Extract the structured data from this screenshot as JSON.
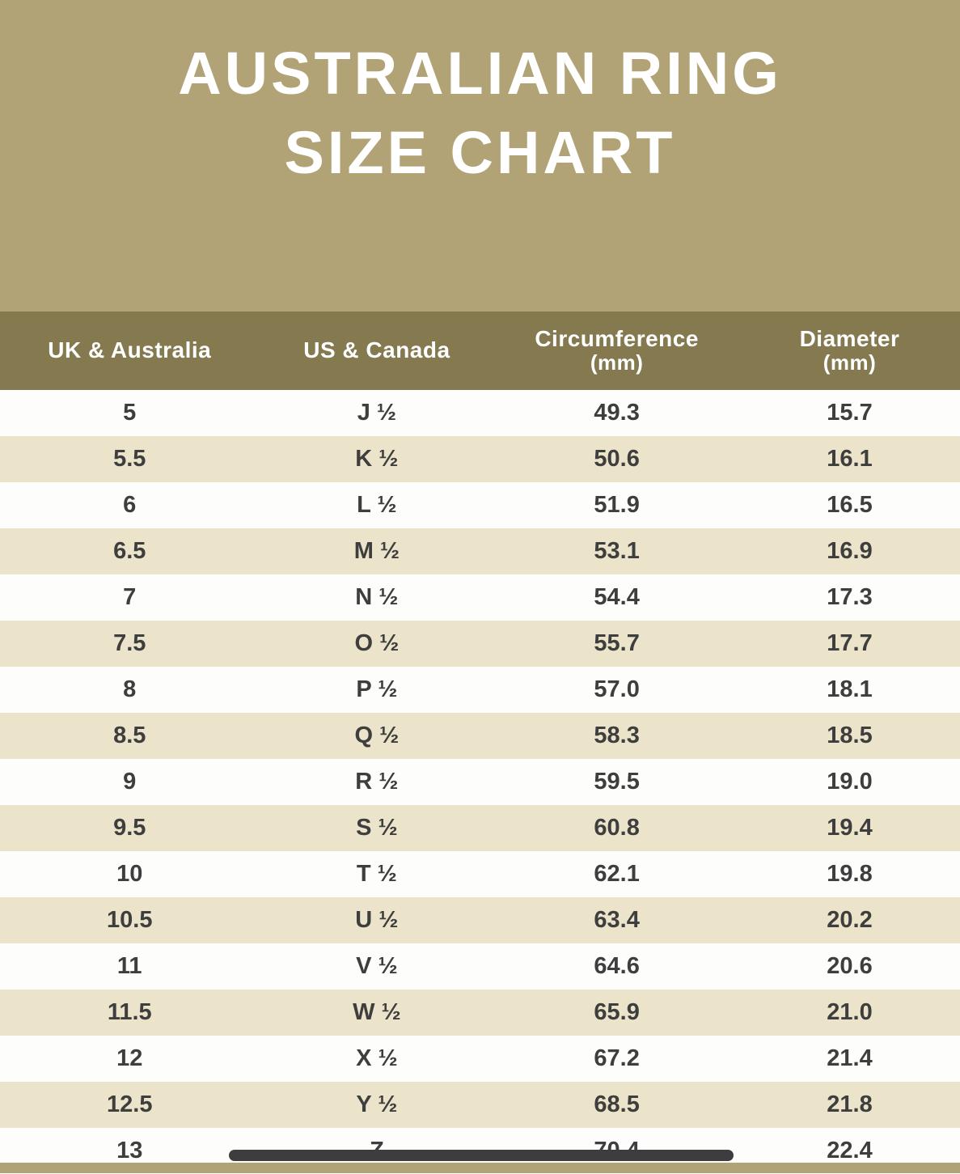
{
  "banner": {
    "title_line1": "AUSTRALIAN RING",
    "title_line2": "SIZE CHART"
  },
  "table": {
    "headers": [
      {
        "main": "UK & Australia",
        "sub": ""
      },
      {
        "main": "US & Canada",
        "sub": ""
      },
      {
        "main": "Circumference",
        "sub": "(mm)"
      },
      {
        "main": "Diameter",
        "sub": "(mm)"
      }
    ]
  },
  "colors": {
    "banner_bg": "#b2a377",
    "header_bg": "#84794f",
    "row_bg": "#fdfdfb",
    "row_alt_bg": "#ebe4ca",
    "text_color": "#3e3e3e",
    "title_color": "#ffffff",
    "scrollbar_color": "#3d3d3f"
  },
  "chart_data": {
    "type": "table",
    "title": "AUSTRALIAN RING SIZE CHART",
    "columns": [
      "UK & Australia",
      "US & Canada",
      "Circumference (mm)",
      "Diameter (mm)"
    ],
    "rows": [
      [
        "5",
        "J ½",
        "49.3",
        "15.7"
      ],
      [
        "5.5",
        "K ½",
        "50.6",
        "16.1"
      ],
      [
        "6",
        "L ½",
        "51.9",
        "16.5"
      ],
      [
        "6.5",
        "M ½",
        "53.1",
        "16.9"
      ],
      [
        "7",
        "N ½",
        "54.4",
        "17.3"
      ],
      [
        "7.5",
        "O ½",
        "55.7",
        "17.7"
      ],
      [
        "8",
        "P ½",
        "57.0",
        "18.1"
      ],
      [
        "8.5",
        "Q ½",
        "58.3",
        "18.5"
      ],
      [
        "9",
        "R ½",
        "59.5",
        "19.0"
      ],
      [
        "9.5",
        "S ½",
        "60.8",
        "19.4"
      ],
      [
        "10",
        "T ½",
        "62.1",
        "19.8"
      ],
      [
        "10.5",
        "U ½",
        "63.4",
        "20.2"
      ],
      [
        "11",
        "V ½",
        "64.6",
        "20.6"
      ],
      [
        "11.5",
        "W ½",
        "65.9",
        "21.0"
      ],
      [
        "12",
        "X ½",
        "67.2",
        "21.4"
      ],
      [
        "12.5",
        "Y ½",
        "68.5",
        "21.8"
      ],
      [
        "13",
        "Z",
        "70.4",
        "22.4"
      ]
    ]
  }
}
